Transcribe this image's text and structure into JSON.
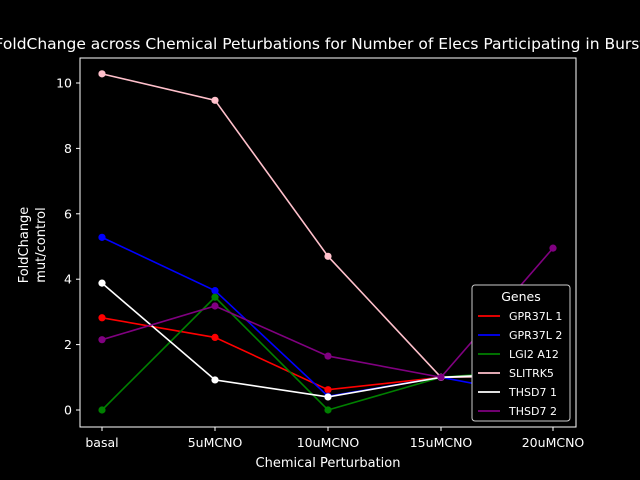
{
  "chart_data": {
    "type": "line",
    "title": "FoldChange across Chemical Peturbations for Number of Elecs Participating in Burst",
    "xlabel": "Chemical Perturbation",
    "ylabel_line1": "FoldChange",
    "ylabel_line2": "mut/control",
    "categories": [
      "basal",
      "5uMCNO",
      "10uMCNO",
      "15uMCNO",
      "20uMCNO"
    ],
    "ylim": [
      -0.5,
      10.8
    ],
    "yticks": [
      0,
      2,
      4,
      6,
      8,
      10
    ],
    "grid": false,
    "legend": {
      "title": "Genes",
      "placement": "lower right"
    },
    "series": [
      {
        "name": "GPR37L 1",
        "color": "#ff0000",
        "values": [
          2.82,
          2.22,
          0.62,
          1.0,
          1.12
        ]
      },
      {
        "name": "GPR37L 2",
        "color": "#0000ff",
        "values": [
          5.28,
          3.65,
          0.42,
          1.0,
          0.35
        ]
      },
      {
        "name": "LGI2 A12",
        "color": "#008000",
        "values": [
          0.0,
          3.45,
          0.0,
          1.0,
          1.25
        ]
      },
      {
        "name": "SLITRK5",
        "color": "#ffc0cb",
        "values": [
          10.28,
          9.47,
          4.7,
          1.0,
          1.05
        ]
      },
      {
        "name": "THSD7 1",
        "color": "#ffffff",
        "values": [
          3.88,
          0.92,
          0.4,
          1.0,
          1.15
        ]
      },
      {
        "name": "THSD7 2",
        "color": "#800080",
        "values": [
          2.15,
          3.18,
          1.65,
          1.0,
          4.95
        ]
      }
    ],
    "extra_points": [
      {
        "series": "THSD7 2 marker",
        "color": "#800080",
        "category": "20uMCNO",
        "value": 3.72
      }
    ]
  }
}
